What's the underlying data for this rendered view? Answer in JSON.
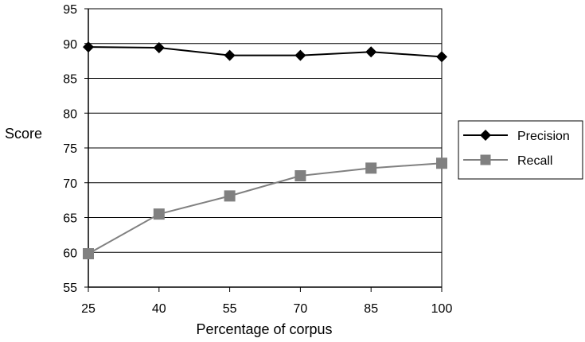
{
  "chart_data": {
    "type": "line",
    "xlabel": "Percentage of corpus",
    "ylabel": "Score",
    "x": [
      25,
      40,
      55,
      70,
      85,
      100
    ],
    "ylim": [
      55,
      95
    ],
    "yticks": [
      55,
      60,
      65,
      70,
      75,
      80,
      85,
      90,
      95
    ],
    "grid": "horizontal",
    "legend_position": "right",
    "series": [
      {
        "name": "Precision",
        "values": [
          89.5,
          89.4,
          88.3,
          88.3,
          88.8,
          88.1
        ],
        "color": "#000000",
        "marker": "diamond"
      },
      {
        "name": "Recall",
        "values": [
          59.8,
          65.5,
          68.1,
          71.0,
          72.1,
          72.8
        ],
        "color": "#808080",
        "marker": "square"
      }
    ]
  }
}
